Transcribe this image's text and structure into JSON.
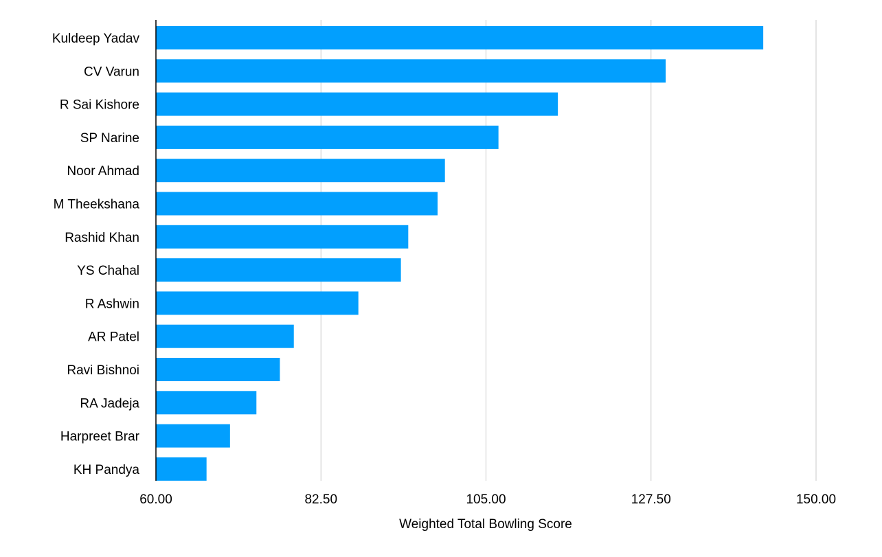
{
  "chart_data": {
    "type": "bar",
    "orientation": "horizontal",
    "title": "",
    "xlabel": "Weighted Total Bowling Score",
    "ylabel": "",
    "xlim": [
      60,
      150
    ],
    "xticks": [
      "60.00",
      "82.50",
      "105.00",
      "127.50",
      "150.00"
    ],
    "xtick_values": [
      60,
      82.5,
      105,
      127.5,
      150
    ],
    "grid": "vertical",
    "bar_color": "#029FFE",
    "categories": [
      "Kuldeep Yadav",
      "CV Varun",
      "R Sai Kishore",
      "SP Narine",
      "Noor Ahmad",
      "M Theekshana",
      "Rashid Khan",
      "YS Chahal",
      "R Ashwin",
      "AR Patel",
      "Ravi Bishnoi",
      "RA Jadeja",
      "Harpreet Brar",
      "KH Pandya"
    ],
    "values": [
      142.8,
      129.5,
      114.8,
      106.7,
      99.4,
      98.4,
      94.4,
      93.4,
      87.6,
      78.8,
      76.9,
      73.7,
      70.1,
      66.9
    ]
  }
}
